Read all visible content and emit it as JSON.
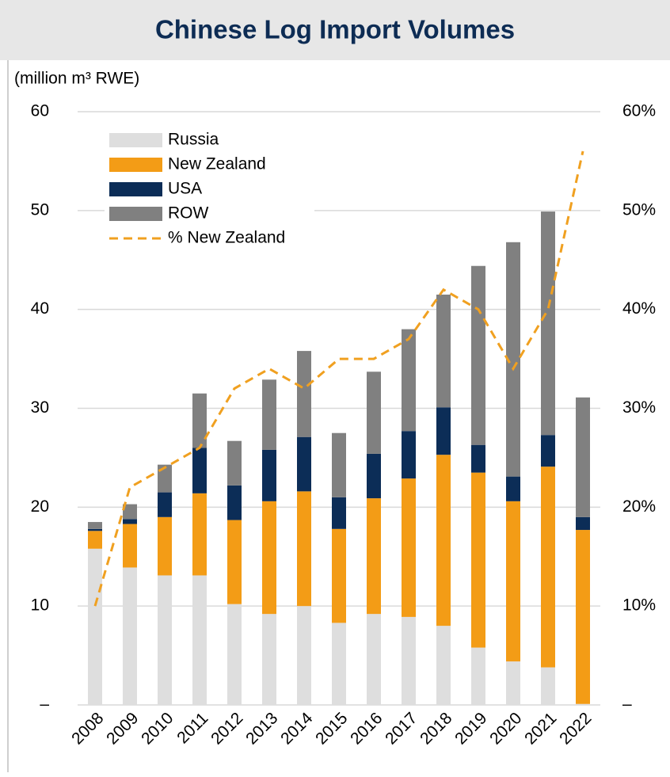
{
  "chart_data": {
    "type": "bar",
    "stacked": true,
    "title": "Chinese Log Import Volumes",
    "y_label": "(million m³ RWE)",
    "categories": [
      "2008",
      "2009",
      "2010",
      "2011",
      "2012",
      "2013",
      "2014",
      "2015",
      "2016",
      "2017",
      "2018",
      "2019",
      "2020",
      "2021",
      "2022"
    ],
    "series": [
      {
        "name": "Russia",
        "color": "#dedede",
        "values": [
          15.8,
          13.9,
          13.1,
          13.1,
          10.2,
          9.2,
          10.0,
          8.3,
          9.2,
          8.9,
          8.0,
          5.8,
          4.4,
          3.8,
          0.1
        ]
      },
      {
        "name": "New Zealand",
        "color": "#f39c16",
        "values": [
          1.8,
          4.4,
          5.9,
          8.3,
          8.5,
          11.4,
          11.6,
          9.5,
          11.7,
          14.0,
          17.3,
          17.7,
          16.2,
          20.3,
          17.6
        ]
      },
      {
        "name": "USA",
        "color": "#0c2d57",
        "values": [
          0.2,
          0.5,
          2.5,
          4.6,
          3.5,
          5.2,
          5.5,
          3.2,
          4.5,
          4.8,
          4.8,
          2.8,
          2.5,
          3.2,
          1.3
        ]
      },
      {
        "name": "ROW",
        "color": "#808080",
        "values": [
          0.7,
          1.5,
          2.8,
          5.5,
          4.5,
          7.1,
          8.7,
          6.5,
          8.3,
          10.3,
          11.4,
          18.1,
          23.7,
          22.6,
          12.1
        ]
      },
      {
        "name": "% New Zealand",
        "type": "line",
        "dashed": true,
        "axis": "y2",
        "color": "#f0a020",
        "values": [
          10,
          22,
          24,
          26,
          32,
          34,
          32,
          35,
          35,
          37,
          42,
          40,
          34,
          40,
          56
        ]
      }
    ],
    "ylim": [
      0,
      60
    ],
    "yticks": [
      {
        "value": 0,
        "label": "–"
      },
      10,
      20,
      30,
      40,
      50,
      60
    ],
    "y2lim": [
      0,
      60
    ],
    "y2ticks": [
      {
        "value": 0,
        "label": "–"
      },
      {
        "value": 10,
        "label": "10%"
      },
      {
        "value": 20,
        "label": "20%"
      },
      {
        "value": 30,
        "label": "30%"
      },
      {
        "value": 40,
        "label": "40%"
      },
      {
        "value": 50,
        "label": "50%"
      },
      {
        "value": 60,
        "label": "60%"
      }
    ],
    "grid": true,
    "legend": "top-left"
  }
}
